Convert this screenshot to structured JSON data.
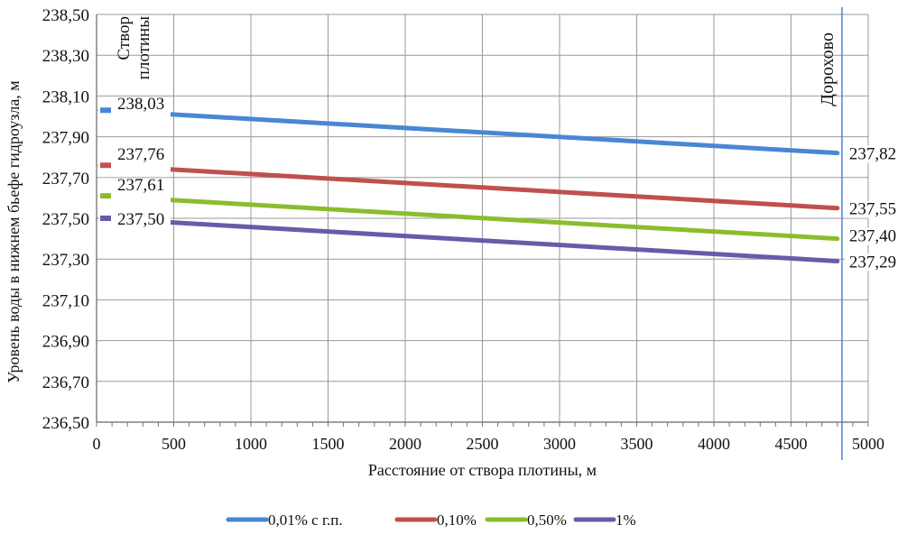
{
  "chart_data": {
    "type": "line",
    "title": "",
    "xlabel": "Расстояние от створа плотины, м",
    "ylabel": "Уровень воды в нижнем бьефе гидроузла, м",
    "xlim": [
      0,
      5000
    ],
    "ylim": [
      236.5,
      238.5
    ],
    "xticks": [
      "0",
      "500",
      "1000",
      "1500",
      "2000",
      "2500",
      "3000",
      "3500",
      "4000",
      "4500",
      "5000"
    ],
    "yticks": [
      "236,50",
      "236,70",
      "236,90",
      "237,10",
      "237,30",
      "237,50",
      "237,70",
      "237,90",
      "238,10",
      "238,30",
      "238,50"
    ],
    "grid": true,
    "legend_position": "bottom",
    "x": [
      0,
      4800
    ],
    "series": [
      {
        "name": "0,01% с г.п.",
        "color": "#4a86d4",
        "values": [
          238.03,
          237.82
        ],
        "labels": [
          "238,03",
          "237,82"
        ]
      },
      {
        "name": "0,10%",
        "color": "#c0504d",
        "values": [
          237.76,
          237.55
        ],
        "labels": [
          "237,76",
          "237,55"
        ]
      },
      {
        "name": "0,50%",
        "color": "#8cbc2e",
        "values": [
          237.61,
          237.4
        ],
        "labels": [
          "237,61",
          "237,40"
        ]
      },
      {
        "name": "1%",
        "color": "#6a5aa8",
        "values": [
          237.5,
          237.29
        ],
        "labels": [
          "237,50",
          "237,29"
        ]
      }
    ],
    "annotations": [
      {
        "text": "Створ плотины",
        "line1": "Створ",
        "line2": "плотины",
        "x": 0
      },
      {
        "text": "Дорохово",
        "x": 4830,
        "line_color": "#4a86d4"
      }
    ]
  }
}
